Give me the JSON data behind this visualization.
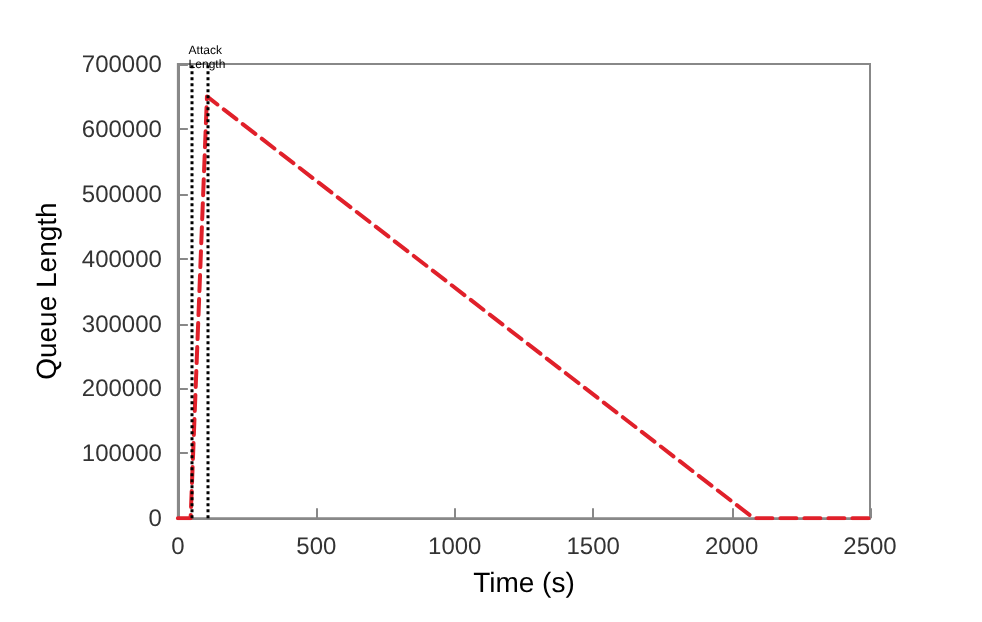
{
  "chart_data": {
    "type": "line",
    "xlabel": "Time (s)",
    "ylabel": "Queue Length",
    "x": [
      0,
      46,
      105,
      2080,
      2500
    ],
    "series": [
      {
        "color": "#e0202a",
        "values": [
          0,
          0,
          650000,
          0,
          0
        ]
      }
    ],
    "line_style": "dashed",
    "marker": "none",
    "xlim": [
      0,
      2500
    ],
    "xticks": [
      0,
      500,
      1000,
      1500,
      2000,
      2500
    ],
    "ylim": [
      0,
      700000
    ],
    "yticks": [
      0,
      100000,
      200000,
      300000,
      400000,
      500000,
      600000,
      700000
    ],
    "ref_lines": [
      {
        "axis": "x",
        "value": 46,
        "color": "#000000",
        "line_style": "dotted"
      },
      {
        "axis": "x",
        "value": 105,
        "color": "#000000",
        "line_style": "dotted"
      }
    ],
    "annotations": [
      {
        "text": "Attack Length",
        "x": 105,
        "y": 670000
      }
    ]
  }
}
